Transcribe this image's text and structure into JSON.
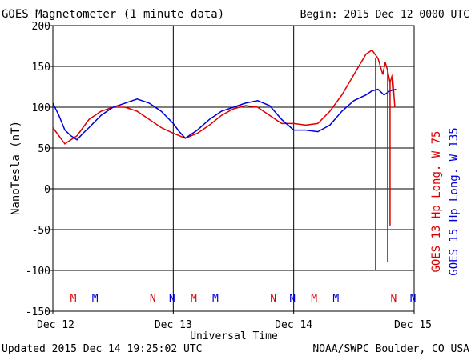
{
  "header": {
    "title": "GOES Magnetometer (1 minute data)",
    "begin": "Begin:  2015 Dec 12 0000 UTC"
  },
  "footer": {
    "updated": "Updated 2015 Dec 14 19:25:02 UTC",
    "credit": "NOAA/SWPC Boulder, CO USA"
  },
  "chart_data": {
    "type": "line",
    "title": "GOES Magnetometer (1 minute data)",
    "xlabel": "Universal Time",
    "ylabel": "NanoTesla (nT)",
    "xlim": [
      0,
      3
    ],
    "ylim": [
      -150,
      200
    ],
    "grid": true,
    "x_ticks": [
      {
        "value": 0,
        "label": "Dec 12"
      },
      {
        "value": 1,
        "label": "Dec 13"
      },
      {
        "value": 2,
        "label": "Dec 14"
      },
      {
        "value": 3,
        "label": "Dec 15"
      }
    ],
    "y_ticks": [
      200,
      150,
      100,
      50,
      0,
      -50,
      -100,
      -150
    ],
    "series": [
      {
        "name": "GOES 13 Hp   Long. W 75",
        "color": "#dd0000",
        "x": [
          0.0,
          0.05,
          0.1,
          0.15,
          0.2,
          0.25,
          0.3,
          0.4,
          0.5,
          0.6,
          0.7,
          0.8,
          0.9,
          1.0,
          1.05,
          1.1,
          1.2,
          1.3,
          1.4,
          1.5,
          1.6,
          1.7,
          1.8,
          1.9,
          2.0,
          2.1,
          2.2,
          2.3,
          2.4,
          2.5,
          2.6,
          2.65,
          2.7,
          2.72,
          2.74,
          2.76,
          2.78,
          2.8,
          2.82,
          2.84
        ],
        "values": [
          75,
          65,
          55,
          60,
          65,
          75,
          85,
          95,
          100,
          100,
          95,
          85,
          75,
          68,
          65,
          62,
          68,
          78,
          90,
          98,
          102,
          100,
          90,
          80,
          80,
          78,
          80,
          95,
          115,
          140,
          165,
          170,
          160,
          150,
          140,
          155,
          145,
          130,
          140,
          100
        ]
      },
      {
        "name": "GOES 15 Hp   Long. W 135",
        "color": "#0000dd",
        "x": [
          0.0,
          0.05,
          0.1,
          0.15,
          0.2,
          0.25,
          0.3,
          0.4,
          0.5,
          0.6,
          0.7,
          0.8,
          0.9,
          1.0,
          1.05,
          1.1,
          1.2,
          1.3,
          1.4,
          1.5,
          1.6,
          1.7,
          1.8,
          1.9,
          2.0,
          2.1,
          2.2,
          2.3,
          2.4,
          2.5,
          2.6,
          2.65,
          2.7,
          2.75,
          2.8,
          2.85
        ],
        "values": [
          105,
          90,
          72,
          65,
          60,
          68,
          75,
          90,
          100,
          105,
          110,
          105,
          95,
          80,
          70,
          62,
          72,
          85,
          95,
          100,
          105,
          108,
          102,
          85,
          72,
          72,
          70,
          78,
          95,
          108,
          115,
          120,
          122,
          115,
          120,
          122
        ]
      }
    ],
    "spikes": [
      {
        "series": 0,
        "x": 2.68,
        "to": -100
      },
      {
        "series": 0,
        "x": 2.78,
        "to": -90
      },
      {
        "series": 0,
        "x": 2.8,
        "to": -45
      }
    ],
    "markers": [
      {
        "label": "M",
        "x": 0.17,
        "color": "#dd0000"
      },
      {
        "label": "M",
        "x": 0.35,
        "color": "#0000dd"
      },
      {
        "label": "N",
        "x": 0.83,
        "color": "#dd0000"
      },
      {
        "label": "N",
        "x": 0.99,
        "color": "#0000dd"
      },
      {
        "label": "M",
        "x": 1.17,
        "color": "#dd0000"
      },
      {
        "label": "M",
        "x": 1.35,
        "color": "#0000dd"
      },
      {
        "label": "N",
        "x": 1.83,
        "color": "#dd0000"
      },
      {
        "label": "N",
        "x": 1.99,
        "color": "#0000dd"
      },
      {
        "label": "M",
        "x": 2.17,
        "color": "#dd0000"
      },
      {
        "label": "M",
        "x": 2.35,
        "color": "#0000dd"
      },
      {
        "label": "N",
        "x": 2.83,
        "color": "#dd0000"
      },
      {
        "label": "N",
        "x": 2.99,
        "color": "#0000dd"
      }
    ]
  }
}
